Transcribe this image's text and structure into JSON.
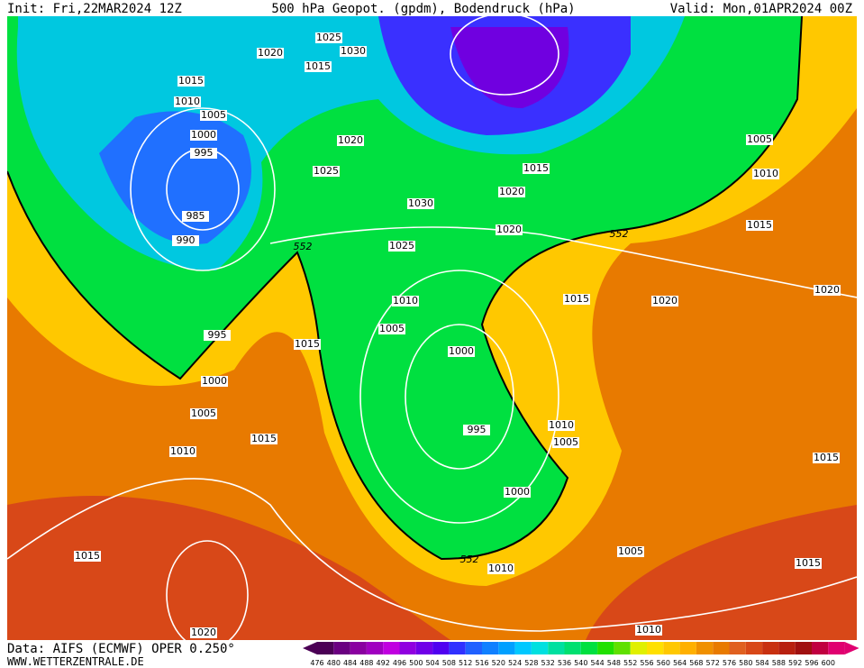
{
  "header": {
    "init": "Init: Fri,22MAR2024 12Z",
    "title": "500 hPa Geopot. (gpdm), Bodendruck (hPa)",
    "valid": "Valid: Mon,01APR2024 00Z"
  },
  "isobar_labels": [
    "1025",
    "1030",
    "1020",
    "1015",
    "1015",
    "1010",
    "1005",
    "1000",
    "995",
    "985",
    "990",
    "1025",
    "1020",
    "1030",
    "1025",
    "1020",
    "1020",
    "1015",
    "1005",
    "1010",
    "1015",
    "1010",
    "1005",
    "1015",
    "995",
    "1000",
    "1005",
    "1010",
    "1015",
    "1000",
    "995",
    "1015",
    "1020",
    "1020",
    "1010",
    "1005",
    "1000",
    "1015",
    "1015",
    "1020",
    "1005",
    "1015",
    "1010",
    "1010"
  ],
  "contour_labels": [
    "552",
    "552",
    "552"
  ],
  "footer": {
    "data": "Data: AIFS (ECMWF) OPER 0.250°",
    "site": "WWW.WETTERZENTRALE.DE"
  },
  "colorbar": {
    "levels": [
      476,
      480,
      484,
      488,
      492,
      496,
      500,
      504,
      508,
      512,
      516,
      520,
      524,
      528,
      532,
      536,
      540,
      544,
      548,
      552,
      556,
      560,
      564,
      568,
      572,
      576,
      580,
      584,
      588,
      592,
      596,
      600
    ],
    "colors": [
      "#4b0055",
      "#6a0080",
      "#8a00a0",
      "#a000c0",
      "#c000e0",
      "#9000e0",
      "#7000e8",
      "#5000f0",
      "#3030ff",
      "#2060ff",
      "#1080ff",
      "#00a0ff",
      "#00c8ff",
      "#00e0e0",
      "#00e0a0",
      "#00e070",
      "#00e040",
      "#20e000",
      "#60e000",
      "#e0f000",
      "#ffe000",
      "#ffc800",
      "#ffb000",
      "#f09000",
      "#e87a00",
      "#e06020",
      "#d84818",
      "#c83010",
      "#b82010",
      "#a01010",
      "#c00040",
      "#e00070"
    ]
  }
}
